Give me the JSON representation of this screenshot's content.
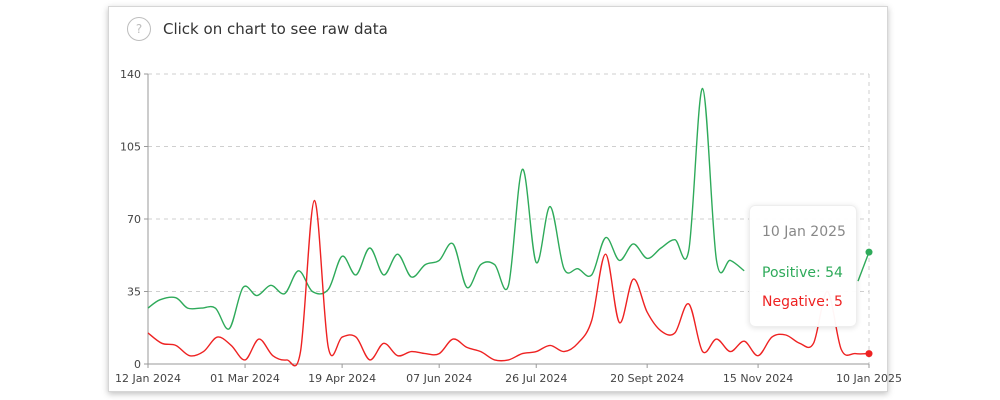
{
  "header": {
    "hint_text": "Click on chart to see raw data",
    "help_icon": "question-mark-icon",
    "help_glyph": "?"
  },
  "tooltip": {
    "date": "10 Jan 2025",
    "positive_label": "Positive: 54",
    "negative_label": "Negative: 5"
  },
  "chart_data": {
    "type": "line",
    "title": "",
    "xlabel": "",
    "ylabel": "",
    "ylim": [
      0,
      140
    ],
    "yticks": [
      "0",
      "35",
      "70",
      "105",
      "140"
    ],
    "xlim": [
      "2024-01-12",
      "2025-01-10"
    ],
    "xticks": [
      "12 Jan 2024",
      "01 Mar 2024",
      "19 Apr 2024",
      "07 Jun 2024",
      "26 Jul 2024",
      "20 Sept 2024",
      "15 Nov 2024",
      "10 Jan 2025"
    ],
    "xtick_dates": [
      "2024-01-12",
      "2024-03-01",
      "2024-04-19",
      "2024-06-07",
      "2024-07-26",
      "2024-09-20",
      "2024-11-15",
      "2025-01-10"
    ],
    "grid": true,
    "colors": {
      "positive": "#2eaa5a",
      "negative": "#ee2222",
      "grid": "#cfcfcf",
      "axis": "#999999"
    },
    "series": [
      {
        "name": "Positive",
        "color": "#2eaa5a",
        "points": [
          [
            "2024-01-12",
            27
          ],
          [
            "2024-01-18",
            31
          ],
          [
            "2024-01-26",
            32
          ],
          [
            "2024-02-01",
            27
          ],
          [
            "2024-02-08",
            27
          ],
          [
            "2024-02-15",
            27
          ],
          [
            "2024-02-22",
            17
          ],
          [
            "2024-02-29",
            37
          ],
          [
            "2024-03-07",
            33
          ],
          [
            "2024-03-14",
            38
          ],
          [
            "2024-03-21",
            34
          ],
          [
            "2024-03-28",
            45
          ],
          [
            "2024-04-04",
            35
          ],
          [
            "2024-04-12",
            36
          ],
          [
            "2024-04-19",
            52
          ],
          [
            "2024-04-26",
            43
          ],
          [
            "2024-05-03",
            56
          ],
          [
            "2024-05-10",
            43
          ],
          [
            "2024-05-17",
            53
          ],
          [
            "2024-05-24",
            42
          ],
          [
            "2024-05-31",
            48
          ],
          [
            "2024-06-07",
            50
          ],
          [
            "2024-06-14",
            58
          ],
          [
            "2024-06-21",
            37
          ],
          [
            "2024-06-28",
            48
          ],
          [
            "2024-07-05",
            48
          ],
          [
            "2024-07-12",
            38
          ],
          [
            "2024-07-19",
            94
          ],
          [
            "2024-07-26",
            49
          ],
          [
            "2024-08-02",
            76
          ],
          [
            "2024-08-09",
            46
          ],
          [
            "2024-08-16",
            46
          ],
          [
            "2024-08-23",
            43
          ],
          [
            "2024-08-30",
            61
          ],
          [
            "2024-09-06",
            50
          ],
          [
            "2024-09-13",
            58
          ],
          [
            "2024-09-20",
            51
          ],
          [
            "2024-09-27",
            56
          ],
          [
            "2024-10-04",
            60
          ],
          [
            "2024-10-11",
            55
          ],
          [
            "2024-10-18",
            133
          ],
          [
            "2024-10-25",
            50
          ],
          [
            "2024-11-01",
            50
          ],
          [
            "2024-11-08",
            45
          ]
        ],
        "last_point": [
          "2025-01-10",
          54
        ]
      },
      {
        "name": "Negative",
        "color": "#ee2222",
        "points": [
          [
            "2024-01-12",
            15
          ],
          [
            "2024-01-19",
            10
          ],
          [
            "2024-01-26",
            9
          ],
          [
            "2024-02-02",
            4
          ],
          [
            "2024-02-09",
            6
          ],
          [
            "2024-02-16",
            13
          ],
          [
            "2024-02-23",
            9
          ],
          [
            "2024-03-01",
            2
          ],
          [
            "2024-03-08",
            12
          ],
          [
            "2024-03-15",
            4
          ],
          [
            "2024-03-22",
            2
          ],
          [
            "2024-03-29",
            6
          ],
          [
            "2024-04-05",
            79
          ],
          [
            "2024-04-12",
            8
          ],
          [
            "2024-04-19",
            13
          ],
          [
            "2024-04-26",
            13
          ],
          [
            "2024-05-03",
            2
          ],
          [
            "2024-05-10",
            10
          ],
          [
            "2024-05-17",
            4
          ],
          [
            "2024-05-24",
            6
          ],
          [
            "2024-05-31",
            5
          ],
          [
            "2024-06-07",
            5
          ],
          [
            "2024-06-14",
            12
          ],
          [
            "2024-06-21",
            8
          ],
          [
            "2024-06-28",
            6
          ],
          [
            "2024-07-05",
            2
          ],
          [
            "2024-07-12",
            2
          ],
          [
            "2024-07-19",
            5
          ],
          [
            "2024-07-26",
            6
          ],
          [
            "2024-08-02",
            9
          ],
          [
            "2024-08-09",
            6
          ],
          [
            "2024-08-16",
            10
          ],
          [
            "2024-08-23",
            21
          ],
          [
            "2024-08-30",
            53
          ],
          [
            "2024-09-06",
            20
          ],
          [
            "2024-09-13",
            41
          ],
          [
            "2024-09-20",
            25
          ],
          [
            "2024-09-27",
            16
          ],
          [
            "2024-10-04",
            15
          ],
          [
            "2024-10-11",
            29
          ],
          [
            "2024-10-18",
            6
          ],
          [
            "2024-10-25",
            12
          ],
          [
            "2024-11-01",
            6
          ],
          [
            "2024-11-08",
            11
          ],
          [
            "2024-11-15",
            4
          ],
          [
            "2024-11-22",
            13
          ],
          [
            "2024-11-29",
            14
          ],
          [
            "2024-12-06",
            10
          ],
          [
            "2024-12-13",
            10
          ],
          [
            "2024-12-20",
            35
          ],
          [
            "2024-12-27",
            7
          ],
          [
            "2025-01-03",
            5
          ],
          [
            "2025-01-10",
            5
          ]
        ],
        "last_point": [
          "2025-01-10",
          5
        ]
      }
    ]
  }
}
